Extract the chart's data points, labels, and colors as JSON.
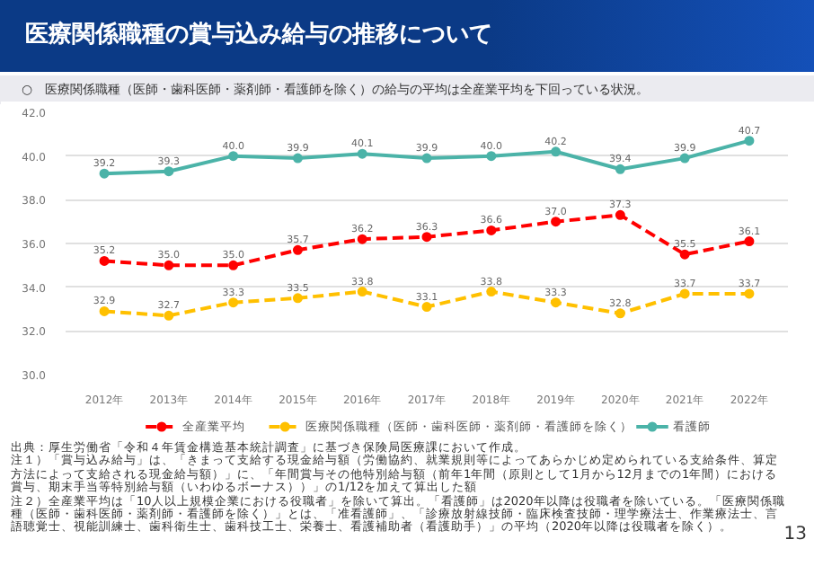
{
  "chart_data": {
    "type": "line",
    "title": "医療関係職種の賞与込み給与の推移について",
    "subtitle": "○　医療関係職種（医師・歯科医師・薬剤師・看護師を除く）の給与の平均は全産業平均を下回っている状況。",
    "categories": [
      "2012年",
      "2013年",
      "2014年",
      "2015年",
      "2016年",
      "2017年",
      "2018年",
      "2019年",
      "2020年",
      "2021年",
      "2022年"
    ],
    "series": [
      {
        "name": "全産業平均",
        "color": "#ff0000",
        "line_style": "dashed",
        "values": [
          35.2,
          35.0,
          35.0,
          35.7,
          36.2,
          36.3,
          36.6,
          37.0,
          37.3,
          35.5,
          36.1
        ],
        "value_labels": [
          "35.2",
          "35.0",
          "35.0",
          "35.7",
          "36.2",
          "36.3",
          "36.6",
          "37.0",
          "37.3",
          "35.5",
          "36.1"
        ]
      },
      {
        "name": "医療関係職種（医師・歯科医師・薬剤師・看護師を除く）",
        "color": "#ffc000",
        "line_style": "dashed",
        "values": [
          32.9,
          32.7,
          33.3,
          33.5,
          33.8,
          33.1,
          33.8,
          33.3,
          32.8,
          33.7,
          33.7
        ],
        "value_labels": [
          "32.9",
          "32.7",
          "33.3",
          "33.5",
          "33.8",
          "33.1",
          "33.8",
          "33.3",
          "32.8",
          "33.7",
          "33.7"
        ]
      },
      {
        "name": "看護師",
        "color": "#4bb3a8",
        "line_style": "solid",
        "values": [
          39.2,
          39.3,
          40.0,
          39.9,
          40.1,
          39.9,
          40.0,
          40.2,
          39.4,
          39.9,
          40.7
        ],
        "value_labels": [
          "39.2",
          "39.3",
          "40.0",
          "39.9",
          "40.1",
          "39.9",
          "40.0",
          "40.2",
          "39.4",
          "39.9",
          "40.7"
        ]
      }
    ],
    "ylim": [
      30.0,
      42.0
    ],
    "yticks": [
      {
        "value": 30,
        "label": "30.0"
      },
      {
        "value": 32,
        "label": "32.0"
      },
      {
        "value": 34,
        "label": "34.0"
      },
      {
        "value": 36,
        "label": "36.0"
      },
      {
        "value": 38,
        "label": "38.0"
      },
      {
        "value": 40,
        "label": "40.0"
      },
      {
        "value": 42,
        "label": "42.0"
      }
    ],
    "grid": "y",
    "legend": "bottom",
    "marker": "circle",
    "annotations": [
      "出典：厚生労働省「令和４年賃金構造基本統計調査」に基づき保険局医療課において作成。",
      "注１）「賞与込み給与」は、「きまって支給する現金給与額（労働協約、就業規則等によってあらかじめ定められている支給条件、算定方法によって支給される現金給与額）」に、「年間賞与その他特別給与額（前年1年間（原則として1月から12月までの1年間）における賞与、期末手当等特別給与額（いわゆるボーナス））」の1/12を加えて算出した額",
      "注２）全産業平均は「10人以上規模企業における役職者」を除いて算出。「看護師」は2020年以降は役職者を除いている。「医療関係職種（医師・歯科医師・薬剤師・看護師を除く）」とは、「准看護師」、「診療放射線技師・臨床検査技師・理学療法士、作業療法士、言語聴覚士、視能訓練士、歯科衛生士、歯科技工士、栄養士、看護補助者（看護助手）」の平均（2020年以降は役職者を除く）。",
      "13"
    ]
  }
}
